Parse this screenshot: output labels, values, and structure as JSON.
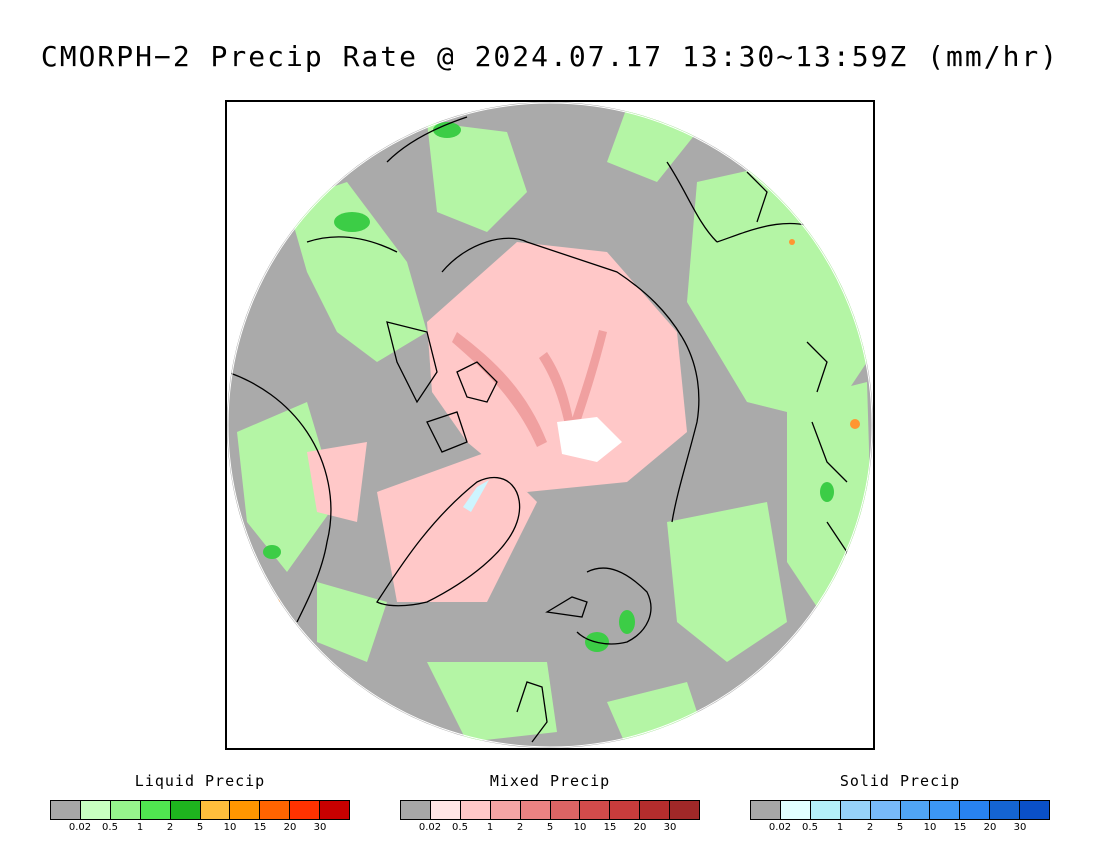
{
  "title": "CMORPH−2 Precip Rate @ 2024.07.17 13:30~13:59Z (mm/hr)",
  "colors": {
    "no_precip": "#aaaaaa",
    "coastline": "#000000",
    "land_mask": "#ffffff"
  },
  "legends": [
    {
      "name": "liquid",
      "title": "Liquid Precip",
      "colors": [
        "#a6a6a6",
        "#c8ffc0",
        "#96f58c",
        "#50e650",
        "#1eb41e",
        "#ffbe3c",
        "#ff9600",
        "#ff6400",
        "#ff3200",
        "#c80000"
      ],
      "ticks": [
        "0.02",
        "0.5",
        "1",
        "2",
        "5",
        "10",
        "15",
        "20",
        "30"
      ]
    },
    {
      "name": "mixed",
      "title": "Mixed Precip",
      "colors": [
        "#a6a6a6",
        "#ffe6e6",
        "#ffc8c8",
        "#f5a5a5",
        "#eb8282",
        "#dc6464",
        "#d24b4b",
        "#c83c3c",
        "#b42d2d",
        "#a02828"
      ],
      "ticks": [
        "0.02",
        "0.5",
        "1",
        "2",
        "5",
        "10",
        "15",
        "20",
        "30"
      ]
    },
    {
      "name": "solid",
      "title": "Solid Precip",
      "colors": [
        "#a6a6a6",
        "#e1ffff",
        "#b4f0fa",
        "#96d2fa",
        "#78b9fa",
        "#50a5f5",
        "#3c97f5",
        "#2882f0",
        "#1464d2",
        "#0a50c8"
      ],
      "ticks": [
        "0.02",
        "0.5",
        "1",
        "2",
        "5",
        "10",
        "15",
        "20",
        "30"
      ]
    }
  ]
}
